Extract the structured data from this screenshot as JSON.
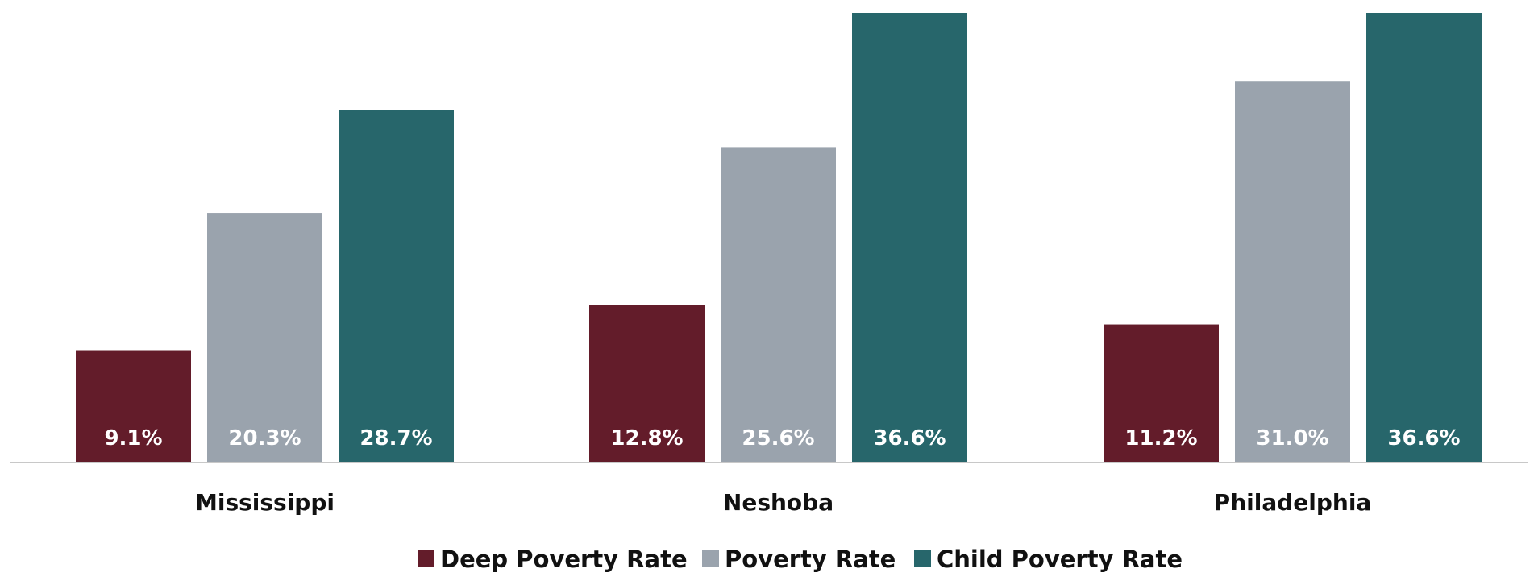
{
  "chart_data": {
    "type": "bar",
    "categories": [
      "Mississippi",
      "Neshoba",
      "Philadelphia"
    ],
    "series": [
      {
        "name": "Deep Poverty Rate",
        "values": [
          9.1,
          12.8,
          11.2
        ],
        "labels": [
          "9.1%",
          "12.8%",
          "11.2%"
        ],
        "color": "#631c2a"
      },
      {
        "name": "Poverty Rate",
        "values": [
          20.3,
          25.6,
          31.0
        ],
        "labels": [
          "20.3%",
          "25.6%",
          "31.0%"
        ],
        "color": "#9aa3ad"
      },
      {
        "name": "Child Poverty Rate",
        "values": [
          28.7,
          36.6,
          36.6
        ],
        "labels": [
          "28.7%",
          "36.6%",
          "36.6%"
        ],
        "color": "#27666b"
      }
    ],
    "ylim": [
      0,
      36.6
    ],
    "grid": false,
    "legend_position": "bottom"
  },
  "colors": {
    "axis": "#c8c8c8"
  }
}
